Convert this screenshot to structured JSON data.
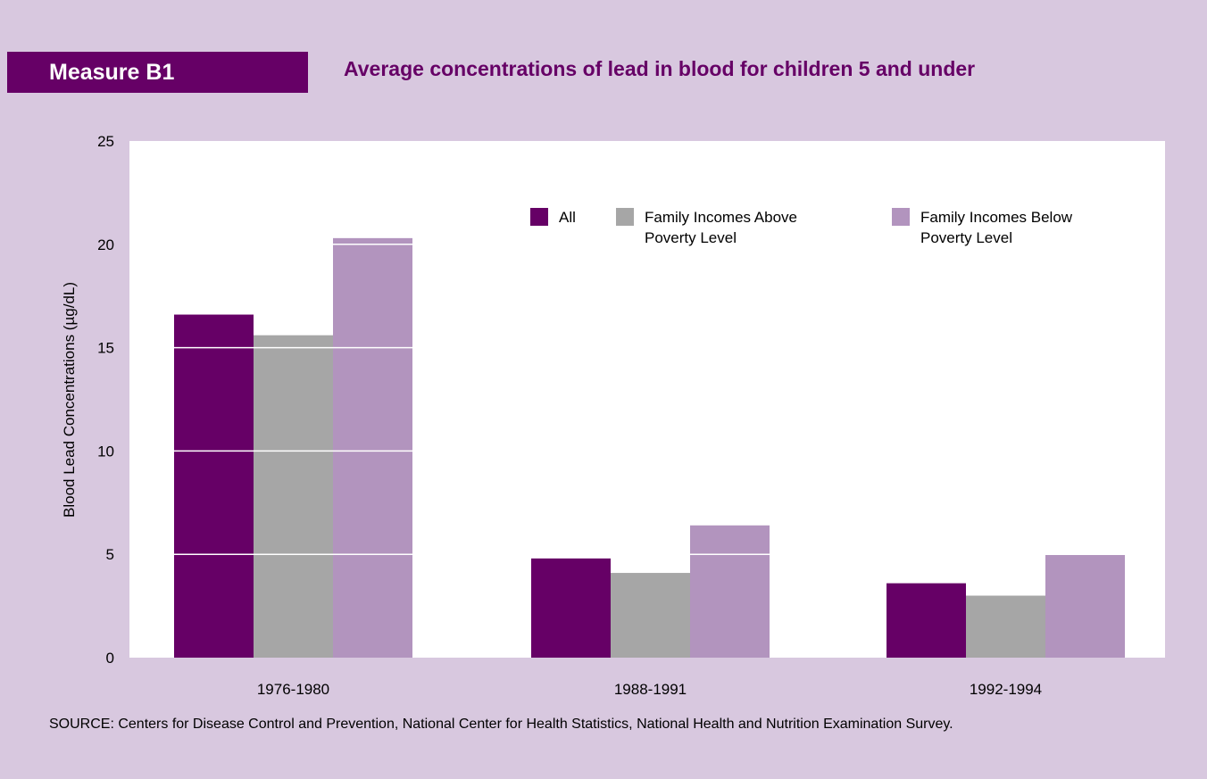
{
  "measure_label": "Measure B1",
  "source_text": "SOURCE:  Centers for Disease Control and Prevention, National Center for Health Statistics, National Health and Nutrition Examination Survey.",
  "colors": {
    "page_background": "#d8c8df",
    "plot_background": "#ffffff",
    "accent": "#660066"
  },
  "chart_data": {
    "type": "bar",
    "title": "Average concentrations of lead in blood for children 5 and under",
    "ylabel": "Blood Lead Concentrations (µg/dL)",
    "xlabel": "",
    "ylim": [
      0,
      25
    ],
    "yticks": [
      0,
      5,
      10,
      15,
      20,
      25
    ],
    "grid": "horizontal, white, drawn over bars",
    "legend_position": "top-right",
    "categories": [
      "1976-1980",
      "1988-1991",
      "1992-1994"
    ],
    "series": [
      {
        "name": "All",
        "color": "#660066",
        "values": [
          16.6,
          4.8,
          3.6
        ]
      },
      {
        "name": "Family Incomes Above Poverty Level",
        "color": "#a6a6a6",
        "values": [
          15.6,
          4.1,
          3.0
        ]
      },
      {
        "name": "Family Incomes Below Poverty Level",
        "color": "#b294be",
        "values": [
          20.3,
          6.4,
          5.0
        ]
      }
    ],
    "legend_lines": [
      [
        "All"
      ],
      [
        "Family Incomes Above",
        "Poverty Level"
      ],
      [
        "Family Incomes Below",
        "Poverty Level"
      ]
    ]
  }
}
